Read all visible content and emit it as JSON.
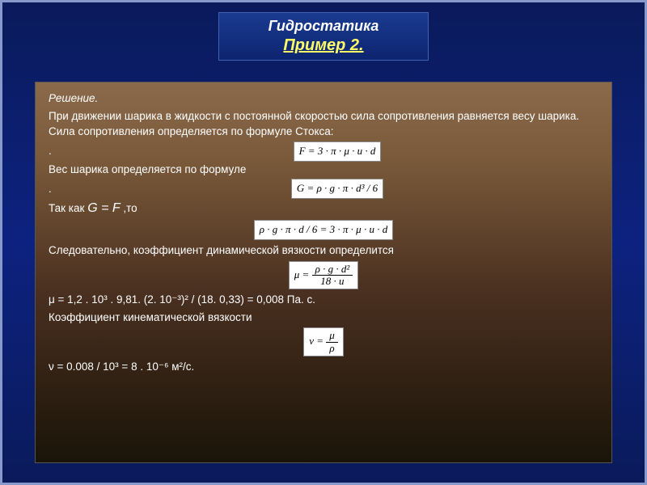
{
  "title": {
    "main": "Гидростатика",
    "sub": "Пример 2."
  },
  "content": {
    "solution_label": "Решение.",
    "p1": "При движении шарика в жидкости с постоянной скоростью сила сопротивления равняется весу шарика. Сила сопротивления определяется по формуле Стокса:",
    "dot1": ".",
    "p2": "Вес шарика определяется по формуле",
    "dot2": ".",
    "p3_prefix": "Так как ",
    "p3_eq": "G = F",
    "p3_suffix": " ,то",
    "p4": "Следовательно, коэффициент динамической вязкости определится",
    "p5": " μ = 1,2 . 10³ . 9,81. (2. 10⁻³)² / (18. 0,33) = 0,008 Па. с.",
    "p6": "Коэффициент кинематической вязкости",
    "p7": "ν = 0.008 / 10³ = 8 . 10⁻⁶ м²/с."
  },
  "formulas": {
    "f1": "F = 3 · π · μ · u · d",
    "f2": "G = ρ · g · π · d³ / 6",
    "f3": "ρ · g · π · d / 6 = 3 · π · μ · u · d",
    "f4_num": "ρ · g · d²",
    "f4_den": "18 · u",
    "f4_lhs": "μ = ",
    "f5_lhs": "ν  =  ",
    "f5_num": "μ",
    "f5_den": "ρ"
  },
  "style": {
    "text_color": "#ffffff",
    "formula_bg": "#ffffff",
    "formula_fg": "#000000",
    "title_fg": "#ffffff",
    "subtitle_fg": "#ffff66"
  }
}
